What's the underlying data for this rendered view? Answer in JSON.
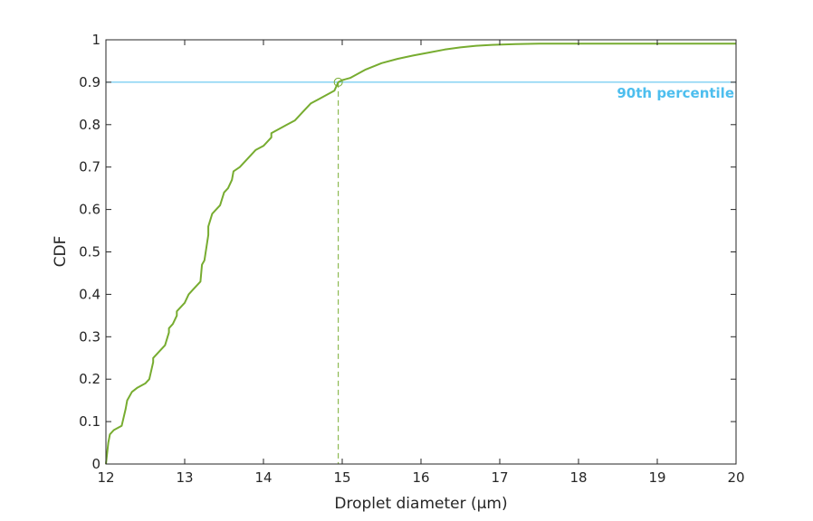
{
  "chart_data": {
    "type": "line",
    "xlabel": "Droplet diameter (µm)",
    "ylabel": "CDF",
    "xlim": [
      12,
      20
    ],
    "ylim": [
      0,
      1
    ],
    "xticks": [
      "12",
      "13",
      "14",
      "15",
      "16",
      "17",
      "18",
      "19",
      "20"
    ],
    "yticks": [
      "0",
      "0.1",
      "0.2",
      "0.3",
      "0.4",
      "0.5",
      "0.6",
      "0.7",
      "0.8",
      "0.9",
      "1"
    ],
    "grid": false,
    "series": [
      {
        "color": "#77ac30",
        "x": [
          12.0,
          12.03,
          12.05,
          12.1,
          12.2,
          12.25,
          12.27,
          12.3,
          12.33,
          12.4,
          12.5,
          12.55,
          12.6,
          12.6,
          12.7,
          12.75,
          12.8,
          12.8,
          12.85,
          12.9,
          12.9,
          13.0,
          13.05,
          13.1,
          13.2,
          13.22,
          13.25,
          13.3,
          13.3,
          13.35,
          13.4,
          13.45,
          13.5,
          13.55,
          13.6,
          13.62,
          13.7,
          13.8,
          13.9,
          14.0,
          14.1,
          14.1,
          14.2,
          14.3,
          14.4,
          14.5,
          14.6,
          14.7,
          14.8,
          14.9,
          14.95,
          15.0,
          15.1,
          15.2,
          15.3,
          15.5,
          15.7,
          15.9,
          16.1,
          16.3,
          16.5,
          16.7,
          16.9,
          17.2,
          17.5,
          18.0,
          19.0,
          20.0
        ],
        "y": [
          0.0,
          0.05,
          0.07,
          0.08,
          0.09,
          0.13,
          0.15,
          0.16,
          0.17,
          0.18,
          0.19,
          0.2,
          0.24,
          0.25,
          0.27,
          0.28,
          0.31,
          0.32,
          0.33,
          0.35,
          0.36,
          0.38,
          0.4,
          0.41,
          0.43,
          0.47,
          0.48,
          0.54,
          0.56,
          0.59,
          0.6,
          0.61,
          0.64,
          0.65,
          0.67,
          0.69,
          0.7,
          0.72,
          0.74,
          0.75,
          0.77,
          0.78,
          0.79,
          0.8,
          0.81,
          0.83,
          0.85,
          0.86,
          0.87,
          0.88,
          0.9,
          0.905,
          0.91,
          0.92,
          0.93,
          0.945,
          0.955,
          0.963,
          0.97,
          0.977,
          0.982,
          0.986,
          0.988,
          0.99,
          0.991,
          0.991,
          0.991,
          0.991
        ]
      }
    ],
    "reference_line": {
      "y": 0.9,
      "label": "90th percentile",
      "color": "#4dbeee"
    },
    "marker": {
      "x": 14.95,
      "y": 0.9,
      "color": "#77ac30"
    }
  }
}
